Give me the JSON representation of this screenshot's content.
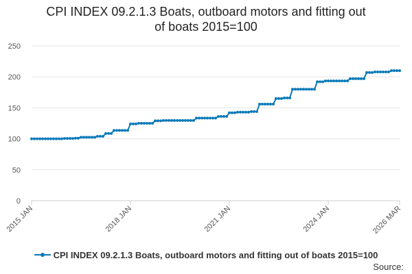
{
  "colors": {
    "series": "#0a7ab8",
    "grid": "#e6e6e6",
    "axis": "#cccccc"
  },
  "chart_data": {
    "type": "line",
    "title_lines": [
      "CPI INDEX 09.2.1.3 Boats, outboard motors and fitting out",
      "of boats 2015=100"
    ],
    "ylim": [
      0,
      250
    ],
    "yticks": [
      0,
      50,
      100,
      150,
      200,
      250
    ],
    "x_start": {
      "year": 2015,
      "month": 1
    },
    "xticks": [
      {
        "label": "2015 JAN",
        "index": 0
      },
      {
        "label": "2018 JAN",
        "index": 36
      },
      {
        "label": "2021 JAN",
        "index": 72
      },
      {
        "label": "2024 JAN",
        "index": 108
      },
      {
        "label": "2026 MAR",
        "index": 134
      }
    ],
    "series": [
      {
        "name": "CPI INDEX 09.2.1.3 Boats, outboard motors and fitting out of boats 2015=100",
        "values": [
          100,
          100,
          100,
          100,
          100,
          100,
          100,
          100,
          100,
          100,
          100,
          100,
          100.5,
          100.5,
          100.5,
          100.5,
          101,
          101,
          102.5,
          102.5,
          102.5,
          102.5,
          102.5,
          102.5,
          104,
          104,
          104,
          108.5,
          108.5,
          108.5,
          113.5,
          113.5,
          113.5,
          113.5,
          113.5,
          113.5,
          124,
          124,
          124,
          125,
          125,
          125,
          125,
          125,
          125,
          129,
          129,
          129,
          129.5,
          129.5,
          129.5,
          129.5,
          129.5,
          129.5,
          129.5,
          129.5,
          129.5,
          129.5,
          129.5,
          129.5,
          133.5,
          133.5,
          133.5,
          133.5,
          133.5,
          133.5,
          133.5,
          133.5,
          136,
          136,
          136,
          136,
          142,
          142,
          142,
          143,
          143,
          143,
          143,
          143,
          144,
          144,
          144,
          156,
          156,
          156,
          156,
          156,
          156,
          165,
          165,
          165,
          166,
          166,
          166,
          180,
          180,
          180,
          180,
          180,
          180,
          180,
          180,
          180,
          192,
          192,
          192,
          193.5,
          193.5,
          193.5,
          193.5,
          193.5,
          193.5,
          193.5,
          193.5,
          193.5,
          197,
          197,
          197,
          197,
          197,
          197,
          207,
          207,
          207,
          208,
          208,
          208,
          208,
          208,
          208,
          210,
          210,
          210,
          210
        ]
      }
    ]
  },
  "legend": {
    "label": "CPI INDEX 09.2.1.3 Boats, outboard motors and fitting out of boats 2015=100"
  },
  "source": {
    "label": "Source:"
  }
}
